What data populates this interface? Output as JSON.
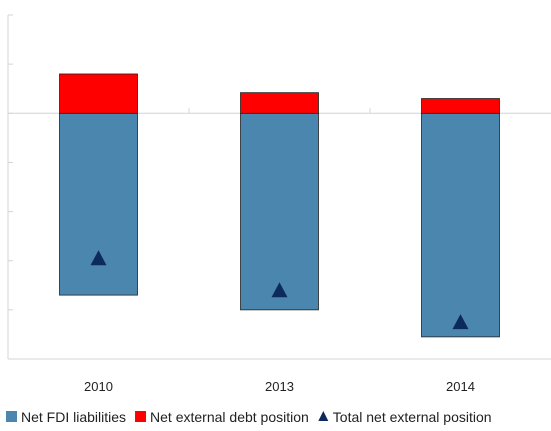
{
  "chart_data": {
    "type": "bar",
    "stacked": true,
    "categories": [
      "2010",
      "2013",
      "2014"
    ],
    "series": [
      {
        "name": "Net FDI liabilities",
        "kind": "bar",
        "color": "#4A86AE",
        "values": [
          -37,
          -40,
          -45.5
        ]
      },
      {
        "name": "Net external debt position",
        "kind": "bar",
        "color": "#FF0000",
        "values": [
          8,
          4.2,
          3
        ]
      },
      {
        "name": "Total net external position",
        "kind": "marker",
        "marker": "triangle",
        "color": "#0D2A5C",
        "values": [
          -29.5,
          -36,
          -42.5
        ]
      }
    ],
    "ylim": [
      -50,
      20
    ],
    "y_tick_step": 10,
    "y_tick_labels_visible": false,
    "grid": false,
    "legend_position": "bottom"
  }
}
